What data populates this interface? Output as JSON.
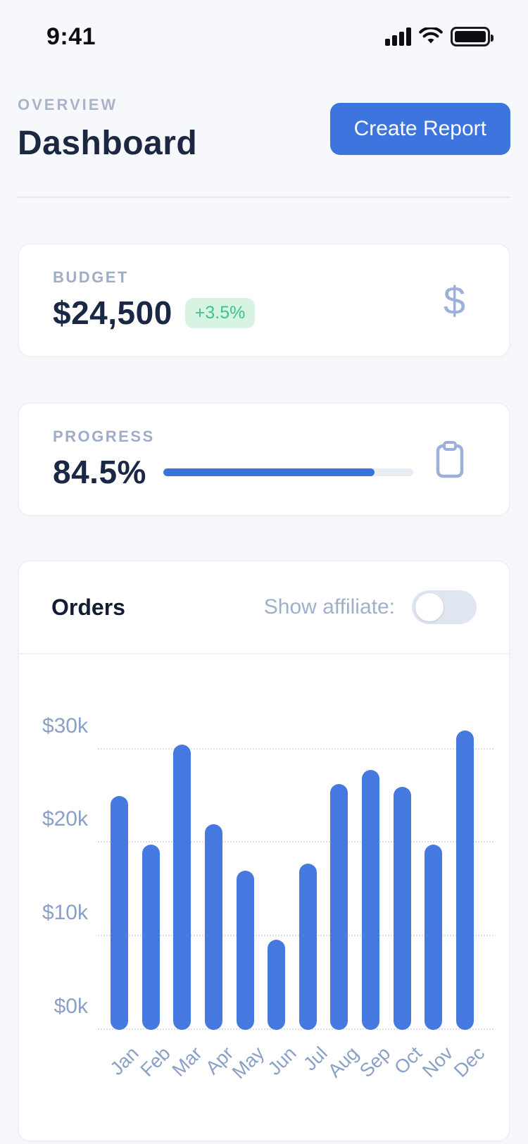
{
  "status_bar": {
    "time": "9:41",
    "icons": [
      "signal-icon",
      "wifi-icon",
      "battery-icon"
    ]
  },
  "header": {
    "eyebrow": "OVERVIEW",
    "title": "Dashboard",
    "create_report_label": "Create Report"
  },
  "budget_card": {
    "label": "BUDGET",
    "value": "$24,500",
    "delta": "+3.5%",
    "icon": "dollar-icon",
    "dollar_glyph": "$"
  },
  "progress_card": {
    "label": "PROGRESS",
    "value": "84.5%",
    "percent": 84.5,
    "icon": "clipboard-icon"
  },
  "orders_card": {
    "title": "Orders",
    "toggle_label": "Show affiliate:",
    "toggle_state": "off"
  },
  "colors": {
    "background": "#f7f8fb",
    "accent_blue": "#3e74de",
    "bar_blue": "#4679df",
    "progress_blue": "#3a71da",
    "green_text": "#3ec483",
    "green_bg": "#d7f3e4",
    "muted_label": "#9fadc9",
    "axis_label": "#8aa0c6",
    "title_dark": "#1c2742"
  },
  "chart_data": {
    "type": "bar",
    "title": "Orders",
    "categories": [
      "Jan",
      "Feb",
      "Mar",
      "Apr",
      "May",
      "Jun",
      "Jul",
      "Aug",
      "Sep",
      "Oct",
      "Nov",
      "Dec"
    ],
    "values": [
      25000,
      19800,
      30500,
      22000,
      17000,
      9600,
      17800,
      26300,
      27800,
      26000,
      19800,
      32000
    ],
    "series_name": "Orders",
    "xlabel": "",
    "ylabel": "",
    "yticks": [
      {
        "value": 30000,
        "label": "$30k"
      },
      {
        "value": 20000,
        "label": "$20k"
      },
      {
        "value": 10000,
        "label": "$10k"
      },
      {
        "value": 0,
        "label": "$0k"
      }
    ],
    "ylim": [
      0,
      33500
    ],
    "grid": "horizontal-dotted",
    "legend": "none",
    "bar_color": "#4679df"
  }
}
